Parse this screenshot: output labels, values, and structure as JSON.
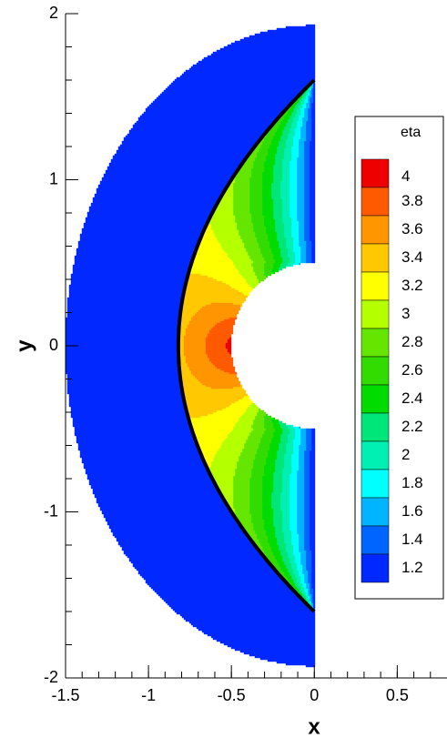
{
  "chart_data": {
    "type": "contour",
    "x_label": "x",
    "y_label": "y",
    "xlim": [
      -1.5,
      0.8
    ],
    "ylim": [
      -2,
      2
    ],
    "xticks": [
      -1.5,
      -1,
      -0.5,
      0,
      0.5
    ],
    "yticks": [
      -2,
      -1,
      0,
      1,
      2
    ],
    "legend_title": "eta",
    "legend_position": "right",
    "levels": [
      1.2,
      1.4,
      1.6,
      1.8,
      2,
      2.2,
      2.4,
      2.6,
      2.8,
      3,
      3.2,
      3.4,
      3.6,
      3.8,
      4
    ],
    "colors": [
      "#0028ff",
      "#0064ff",
      "#00b4ff",
      "#00ffff",
      "#00f0b4",
      "#00e678",
      "#00dc00",
      "#32dc00",
      "#64e600",
      "#b4ff00",
      "#ffff00",
      "#ffc800",
      "#ff9600",
      "#ff5a00",
      "#ee0000"
    ]
  }
}
